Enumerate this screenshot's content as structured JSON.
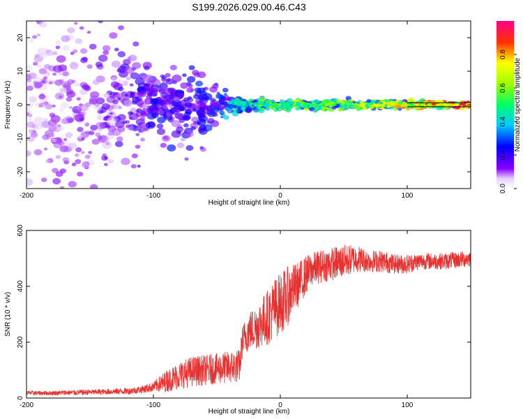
{
  "figure_title": "S199.2026.029.00.46.C43",
  "chart_data": [
    {
      "type": "heatmap",
      "title": "S199.2026.029.00.46.C43",
      "xlabel": "Height of straight line (km)",
      "ylabel": "Frequency (Hz)",
      "xlim": [
        -200,
        150
      ],
      "ylim": [
        -25,
        25
      ],
      "xticks": [
        -200,
        -100,
        0,
        100
      ],
      "yticks": [
        -20,
        -10,
        0,
        10,
        20
      ],
      "colorbar": {
        "label": "Normalized spectral amplitude",
        "range": [
          0.0,
          1.0
        ],
        "ticks": [
          0.0,
          0.2,
          0.4,
          0.6,
          0.8
        ],
        "colormap": "rainbow (white-violet-blue-cyan-green-yellow-red-magenta)"
      },
      "description_points": [
        {
          "x": -200,
          "freq_spread": 25,
          "amplitude": 0.1
        },
        {
          "x": -150,
          "freq_spread": 25,
          "amplitude": 0.15
        },
        {
          "x": -120,
          "freq_spread": 14,
          "amplitude": 0.2
        },
        {
          "x": -100,
          "freq_spread": 8,
          "amplitude": 0.25
        },
        {
          "x": -75,
          "freq_spread": 10,
          "amplitude": 0.25
        },
        {
          "x": -50,
          "freq_spread": 5,
          "amplitude": 0.3
        },
        {
          "x": -30,
          "freq_spread": 1.5,
          "amplitude": 0.45
        },
        {
          "x": 0,
          "freq_spread": 1.2,
          "amplitude": 0.55
        },
        {
          "x": 50,
          "freq_spread": 1.2,
          "amplitude": 0.6
        },
        {
          "x": 100,
          "freq_spread": 1,
          "amplitude": 0.7
        },
        {
          "x": 150,
          "freq_spread": 0.5,
          "amplitude": 0.9
        }
      ]
    },
    {
      "type": "line",
      "xlabel": "Height of straight line (km)",
      "ylabel": "SNR (10 * v/v)",
      "xlim": [
        -200,
        150
      ],
      "ylim": [
        0,
        600
      ],
      "xticks": [
        -200,
        -100,
        0,
        100
      ],
      "yticks": [
        0,
        200,
        400,
        600
      ],
      "color": "#e8302f",
      "series": [
        {
          "name": "SNR",
          "x": [
            -200,
            -180,
            -160,
            -140,
            -120,
            -110,
            -100,
            -90,
            -80,
            -70,
            -60,
            -50,
            -40,
            -32,
            -30,
            -25,
            -20,
            -15,
            -10,
            -5,
            0,
            5,
            10,
            15,
            20,
            25,
            30,
            40,
            50,
            60,
            70,
            80,
            90,
            100,
            110,
            120,
            130,
            140,
            150
          ],
          "values": [
            18,
            18,
            20,
            22,
            25,
            30,
            40,
            60,
            80,
            95,
            100,
            105,
            110,
            115,
            200,
            240,
            250,
            270,
            290,
            320,
            340,
            360,
            390,
            410,
            440,
            460,
            470,
            480,
            490,
            500,
            490,
            490,
            480,
            480,
            490,
            490,
            490,
            495,
            500
          ],
          "noise": [
            8,
            8,
            10,
            10,
            12,
            14,
            18,
            40,
            50,
            55,
            55,
            55,
            60,
            60,
            60,
            70,
            80,
            90,
            100,
            110,
            110,
            110,
            90,
            80,
            70,
            60,
            60,
            60,
            60,
            50,
            40,
            40,
            35,
            35,
            30,
            30,
            30,
            30,
            30
          ]
        }
      ]
    }
  ]
}
